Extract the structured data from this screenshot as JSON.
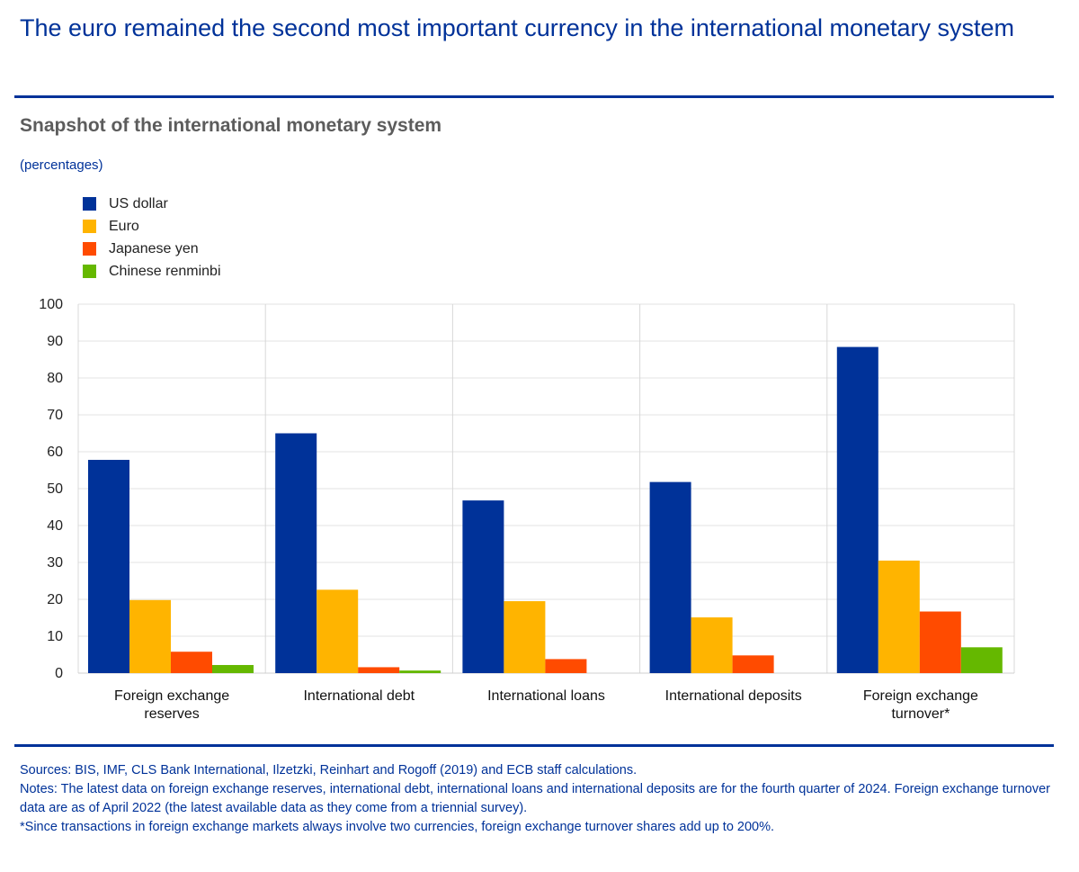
{
  "header": {
    "title": "The euro remained the second most important currency in the international monetary system"
  },
  "chart_data": {
    "type": "bar",
    "title": "Snapshot of the international monetary system",
    "unit": "(percentages)",
    "categories": [
      [
        "Foreign exchange",
        "reserves"
      ],
      [
        "International debt"
      ],
      [
        "International loans"
      ],
      [
        "International deposits"
      ],
      [
        "Foreign exchange",
        "turnover*"
      ]
    ],
    "series": [
      {
        "name": "US dollar",
        "color": "#003299",
        "values": [
          57.8,
          65,
          46.8,
          51.8,
          88.4
        ]
      },
      {
        "name": "Euro",
        "color": "#ffb400",
        "values": [
          19.8,
          22.6,
          19.5,
          15.1,
          30.5
        ]
      },
      {
        "name": "Japanese yen",
        "color": "#ff4b00",
        "values": [
          5.8,
          1.6,
          3.8,
          4.8,
          16.7
        ]
      },
      {
        "name": "Chinese renminbi",
        "color": "#65b800",
        "values": [
          2.2,
          0.7,
          0,
          0,
          7
        ]
      }
    ],
    "ylim": [
      0,
      100
    ],
    "yticks": [
      0,
      10,
      20,
      30,
      40,
      50,
      60,
      70,
      80,
      90,
      100
    ],
    "xlabel": "",
    "ylabel": "",
    "grid": true
  },
  "footer": {
    "sources": "Sources: BIS, IMF, CLS Bank International, Ilzetzki, Reinhart and Rogoff (2019) and ECB staff calculations.",
    "notes": "Notes: The latest data on foreign exchange reserves, international debt, international loans and international deposits are for the fourth quarter of 2024. Foreign exchange turnover data are as of April 2022 (the latest available data as they come from a triennial survey).",
    "asterisk": "*Since transactions in foreign exchange markets always involve two currencies, foreign exchange turnover shares add up to 200%."
  }
}
